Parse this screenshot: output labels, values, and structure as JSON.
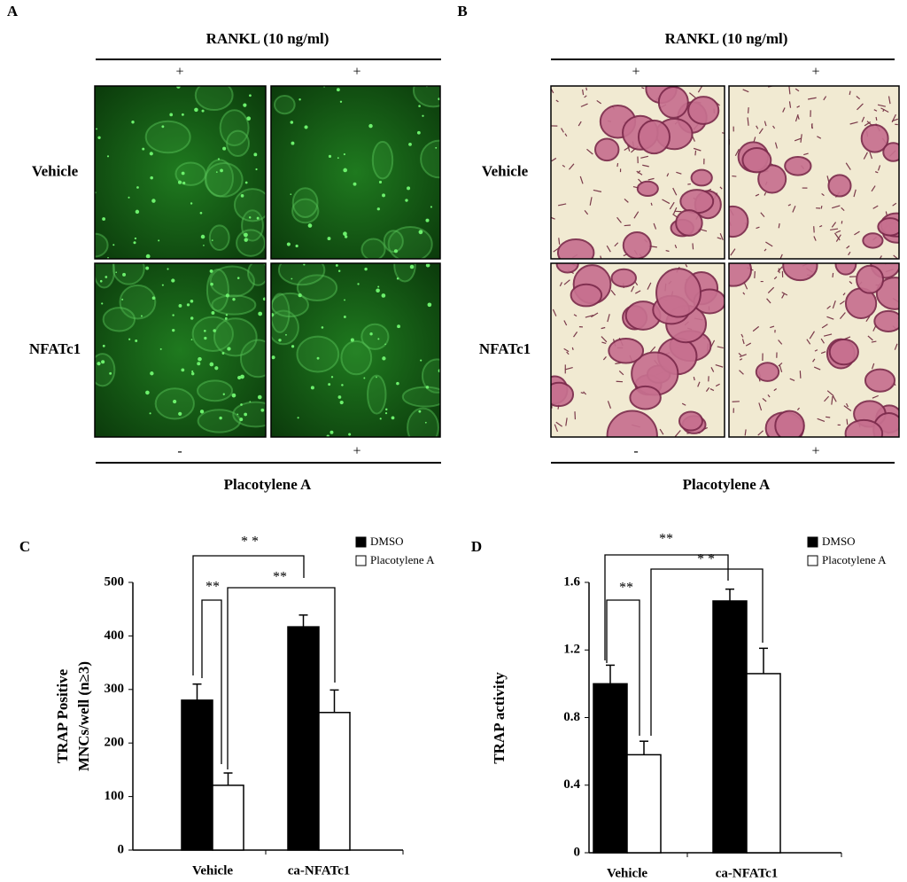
{
  "panels": [
    {
      "letter": "A",
      "header": "RANKL (10 ng/ml)",
      "top_signs": [
        "+",
        "+"
      ],
      "rows": [
        "Vehicle",
        "NFATc1"
      ],
      "bottom_signs": [
        "-",
        "+"
      ],
      "footer": "Placotylene A",
      "stain": "fluorescence"
    },
    {
      "letter": "B",
      "header": "RANKL (10 ng/ml)",
      "top_signs": [
        "+",
        "+"
      ],
      "rows": [
        "Vehicle",
        "NFATc1"
      ],
      "bottom_signs": [
        "-",
        "+"
      ],
      "footer": "Placotylene A",
      "stain": "trap"
    }
  ],
  "chart_data": [
    {
      "type": "bar",
      "letter": "C",
      "ylabel": [
        "TRAP Positive",
        "MNCs/well (n≥3)"
      ],
      "categories": [
        "Vehicle",
        "ca-NFATc1"
      ],
      "series": [
        {
          "name": "DMSO",
          "color": "#000000",
          "values": [
            280,
            417
          ],
          "errors": [
            30,
            22
          ]
        },
        {
          "name": "Placotylene A",
          "color": "#ffffff",
          "values": [
            121,
            257
          ],
          "errors": [
            23,
            42
          ]
        }
      ],
      "ylim": [
        0,
        500
      ],
      "yticks": [
        0,
        100,
        200,
        300,
        400,
        500
      ],
      "annotations": [
        "* *",
        "**",
        "**"
      ]
    },
    {
      "type": "bar",
      "letter": "D",
      "ylabel": [
        "TRAP activity"
      ],
      "categories": [
        "Vehicle",
        "ca-NFATc1"
      ],
      "series": [
        {
          "name": "DMSO",
          "color": "#000000",
          "values": [
            1.0,
            1.49
          ],
          "errors": [
            0.11,
            0.07
          ]
        },
        {
          "name": "Placotylene A",
          "color": "#ffffff",
          "values": [
            0.58,
            1.06
          ],
          "errors": [
            0.08,
            0.15
          ]
        }
      ],
      "ylim": [
        0,
        1.6
      ],
      "yticks": [
        0,
        0.4,
        0.8,
        1.2,
        1.6
      ],
      "annotations": [
        "**",
        "* *",
        "**"
      ]
    }
  ]
}
